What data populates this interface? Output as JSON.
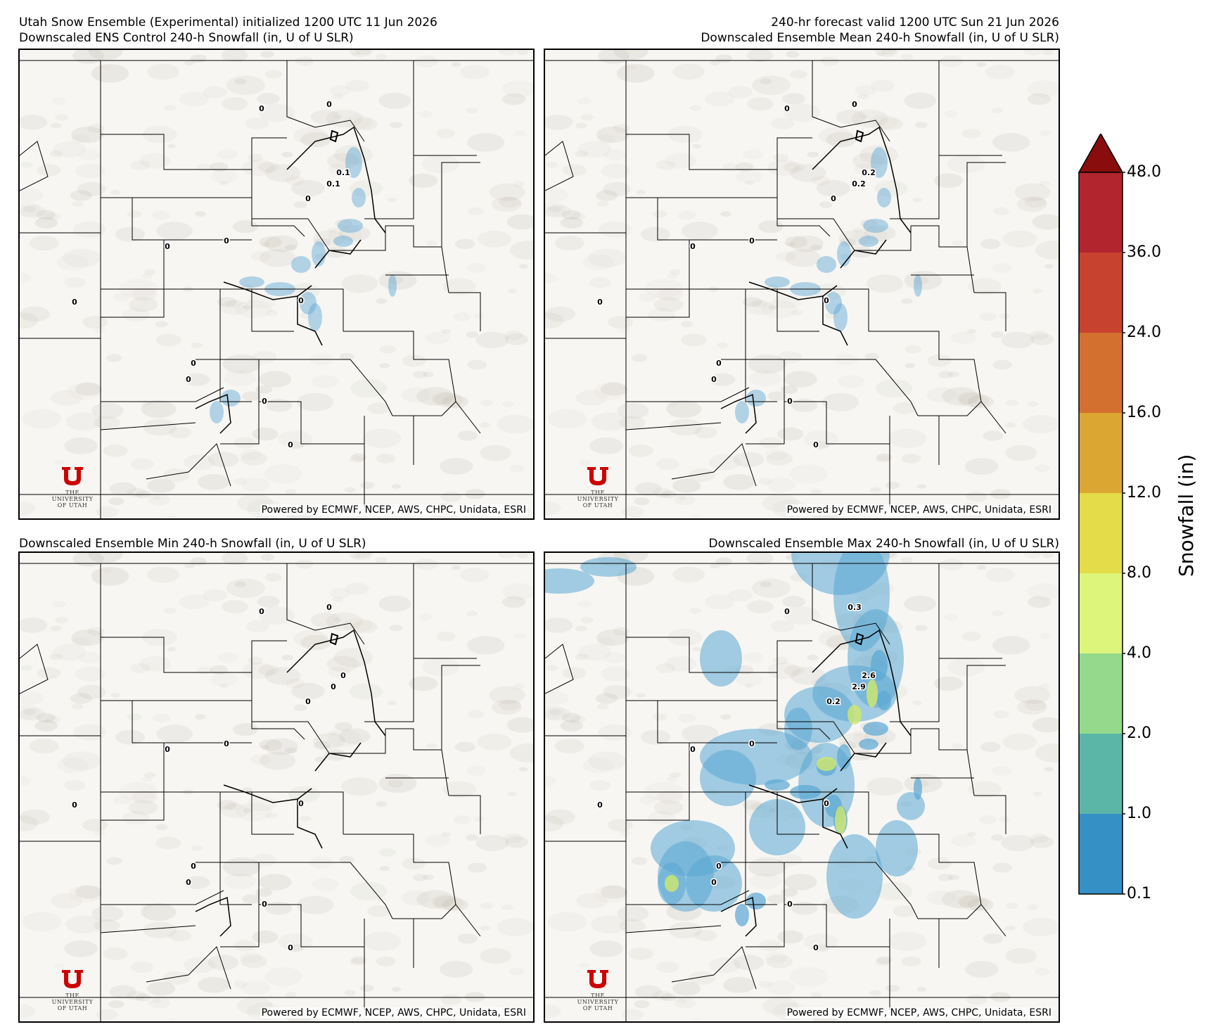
{
  "header": {
    "left_line1": "Utah Snow Ensemble (Experimental) initialized 1200 UTC 11 Jun 2026",
    "left_line2": "Downscaled ENS Control 240-h Snowfall (in, U of U SLR)",
    "right_line1": "240-hr forecast valid 1200 UTC Sun 21 Jun 2026",
    "right_line2": "Downscaled Ensemble Mean 240-h Snowfall (in, U of U SLR)",
    "bottom_left_title": "Downscaled Ensemble Min 240-h Snowfall (in, U of U SLR)",
    "bottom_right_title": "Downscaled Ensemble Max 240-h Snowfall (in, U of U SLR)"
  },
  "panels": [
    {
      "id": "control",
      "credit": "Powered by ECMWF, NCEP, AWS, CHPC, Unidata, ESRI",
      "logo_line1": "THE",
      "logo_line2": "UNIVERSITY",
      "logo_line3": "OF UTAH",
      "point_labels": [
        "0",
        "0",
        "0.1",
        "0.1",
        "0",
        "0",
        "0",
        "0",
        "0",
        "0",
        "0",
        "0",
        "0",
        "0"
      ]
    },
    {
      "id": "mean",
      "credit": "Powered by ECMWF, NCEP, AWS, CHPC, Unidata, ESRI",
      "logo_line1": "THE",
      "logo_line2": "UNIVERSITY",
      "logo_line3": "OF UTAH",
      "point_labels": [
        "0",
        "0",
        "0.2",
        "0.2",
        "0",
        "0",
        "0",
        "0",
        "0",
        "0",
        "0",
        "0",
        "0",
        "0"
      ]
    },
    {
      "id": "min",
      "credit": "Powered by ECMWF, NCEP, AWS, CHPC, Unidata, ESRI",
      "logo_line1": "THE",
      "logo_line2": "UNIVERSITY",
      "logo_line3": "OF UTAH",
      "point_labels": [
        "0",
        "0",
        "0",
        "0",
        "0",
        "0",
        "0",
        "0",
        "0",
        "0",
        "0",
        "0",
        "0",
        "0"
      ]
    },
    {
      "id": "max",
      "credit": "Powered by ECMWF, NCEP, AWS, CHPC, Unidata, ESRI",
      "logo_line1": "THE",
      "logo_line2": "UNIVERSITY",
      "logo_line3": "OF UTAH",
      "point_labels": [
        "0",
        "0.3",
        "2.6",
        "2.9",
        "0.2",
        "0",
        "0",
        "0",
        "0",
        "0",
        "0",
        "0",
        "0",
        "0"
      ]
    }
  ],
  "colorbar": {
    "title": "Snowfall (in)",
    "extend": "max",
    "ticks": [
      "48.0",
      "36.0",
      "24.0",
      "16.0",
      "12.0",
      "8.0",
      "4.0",
      "2.0",
      "1.0",
      "0.1"
    ],
    "colors": [
      "#b2252e",
      "#c8432f",
      "#d4702f",
      "#dca632",
      "#e4dc48",
      "#dcf57a",
      "#94d98c",
      "#5cb6a8",
      "#3590c6"
    ],
    "over_color": "#8a0d0d"
  }
}
